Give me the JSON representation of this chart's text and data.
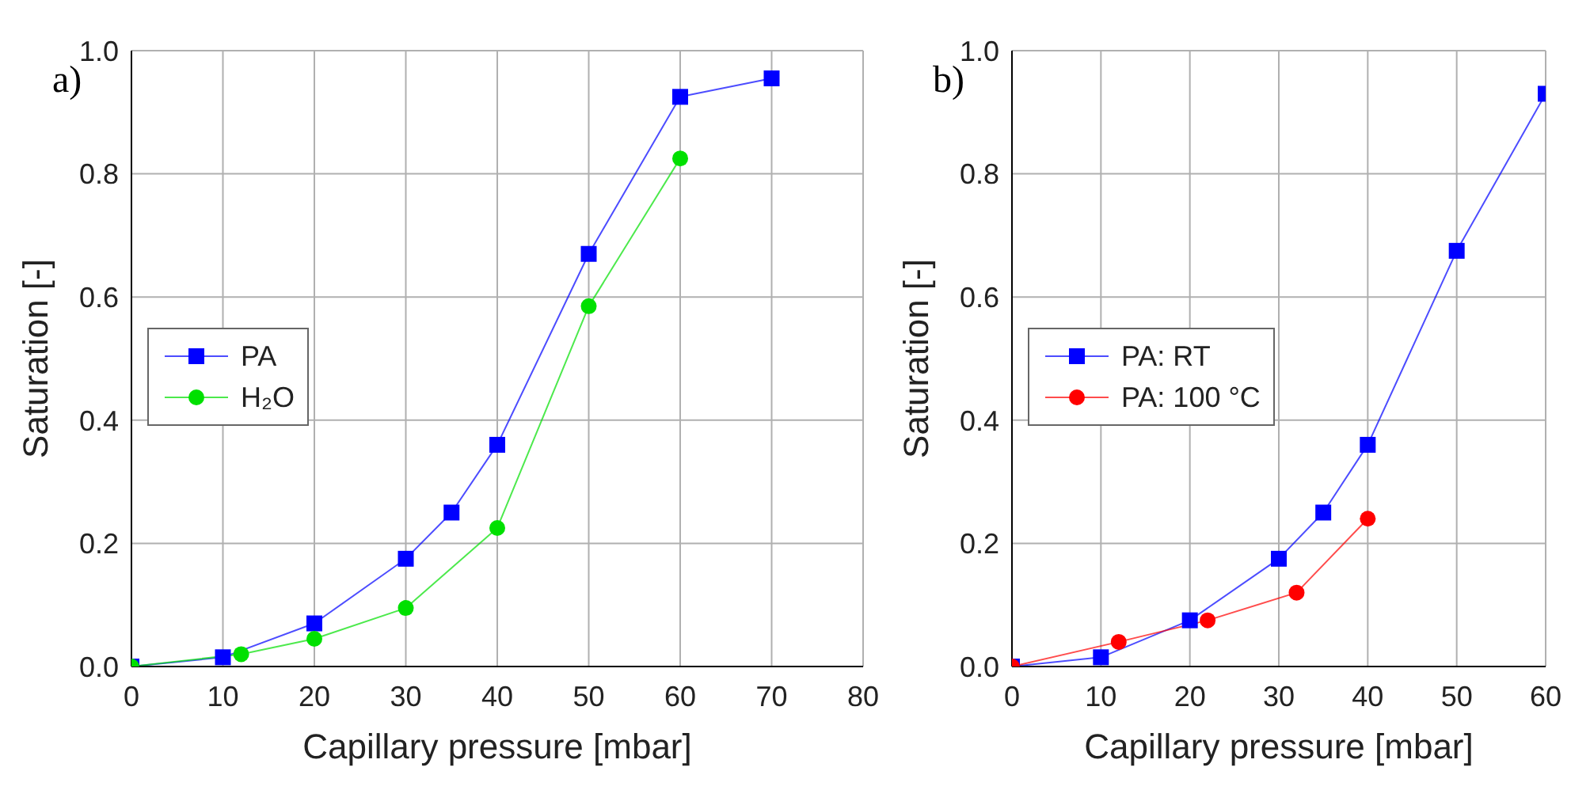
{
  "chart_data": [
    {
      "type": "line",
      "xlabel": "Capillary pressure [mbar]",
      "ylabel": "Saturation [-]",
      "annotations": [
        "a)"
      ],
      "xlim": [
        0,
        80
      ],
      "xticks": [
        0,
        10,
        20,
        30,
        40,
        50,
        60,
        70,
        80
      ],
      "ylim": [
        0,
        1
      ],
      "yticks": [
        {
          "value": 0,
          "label": "0.0"
        },
        {
          "value": 0.2,
          "label": "0.2"
        },
        {
          "value": 0.4,
          "label": "0.4"
        },
        {
          "value": 0.6,
          "label": "0.6"
        },
        {
          "value": 0.8,
          "label": "0.8"
        },
        {
          "value": 1,
          "label": "1.0"
        }
      ],
      "grid": true,
      "legend": "left",
      "series": [
        {
          "name": "PA",
          "color": "#0000ff",
          "marker": "square",
          "x": [
            0,
            10,
            20,
            30,
            35,
            40,
            50,
            60,
            70
          ],
          "values": [
            0,
            0.015,
            0.07,
            0.175,
            0.25,
            0.36,
            0.67,
            0.925,
            0.955
          ]
        },
        {
          "name": "H₂O",
          "color": "#00e000",
          "marker": "circle",
          "x": [
            0,
            12,
            20,
            30,
            40,
            50,
            60
          ],
          "values": [
            0,
            0.02,
            0.045,
            0.095,
            0.225,
            0.585,
            0.825
          ]
        }
      ]
    },
    {
      "type": "line",
      "xlabel": "Capillary pressure [mbar]",
      "ylabel": "Saturation [-]",
      "annotations": [
        "b)"
      ],
      "xlim": [
        0,
        60
      ],
      "xticks": [
        0,
        10,
        20,
        30,
        40,
        50,
        60
      ],
      "ylim": [
        0,
        1
      ],
      "yticks": [
        {
          "value": 0,
          "label": "0.0"
        },
        {
          "value": 0.2,
          "label": "0.2"
        },
        {
          "value": 0.4,
          "label": "0.4"
        },
        {
          "value": 0.6,
          "label": "0.6"
        },
        {
          "value": 0.8,
          "label": "0.8"
        },
        {
          "value": 1,
          "label": "1.0"
        }
      ],
      "grid": true,
      "legend": "left",
      "series": [
        {
          "name": "PA: RT",
          "color": "#0000ff",
          "marker": "square",
          "x": [
            0,
            10,
            20,
            30,
            35,
            40,
            50,
            60
          ],
          "values": [
            0,
            0.015,
            0.075,
            0.175,
            0.25,
            0.36,
            0.675,
            0.93
          ]
        },
        {
          "name": "PA: 100 °C",
          "color": "#ff0000",
          "marker": "circle",
          "x": [
            0,
            12,
            22,
            32,
            40
          ],
          "values": [
            0,
            0.04,
            0.075,
            0.12,
            0.24
          ]
        }
      ]
    }
  ]
}
